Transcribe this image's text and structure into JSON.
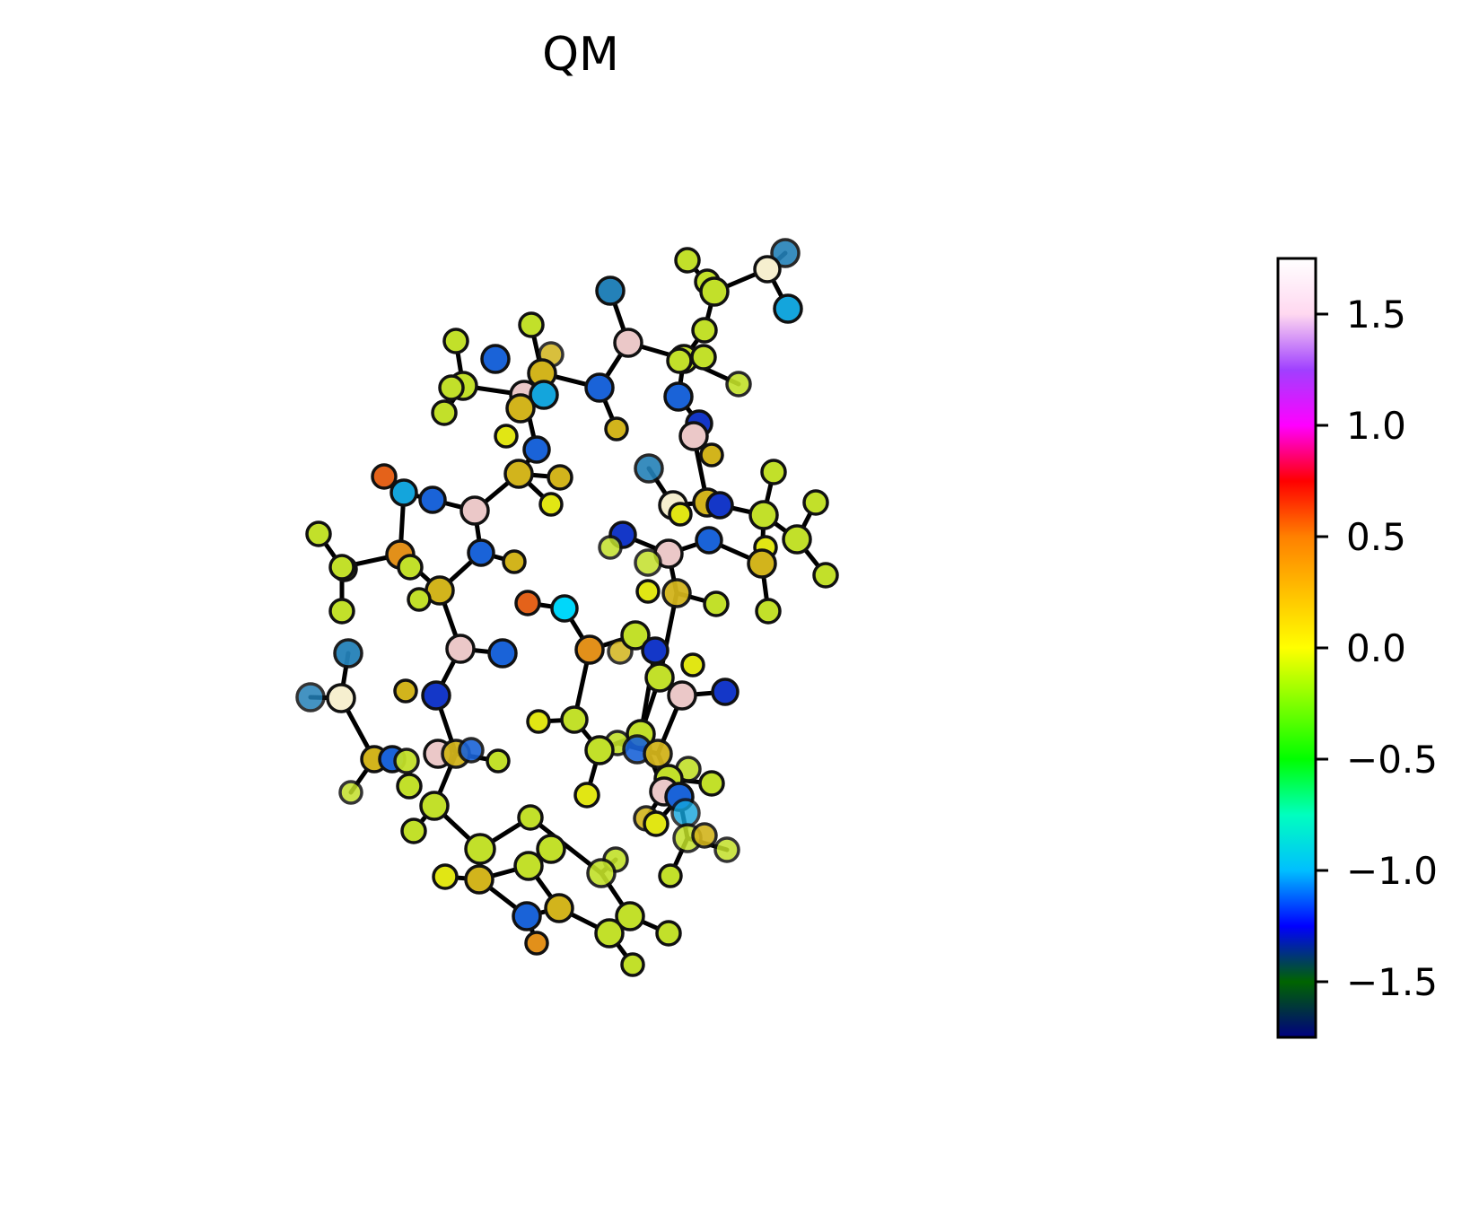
{
  "figure": {
    "title": "QM"
  },
  "colorbar": {
    "colormap": "gist_ncar",
    "range": [
      -1.75,
      1.75
    ],
    "stops": [
      "#000080",
      "#006400",
      "#0000FF",
      "#00BFFF",
      "#00FFBF",
      "#00FF00",
      "#80FF00",
      "#FFFF00",
      "#FFC000",
      "#FF8000",
      "#FF0000",
      "#FF00FF",
      "#A040FF",
      "#FFD8F0",
      "#FFFFFF"
    ],
    "ticks": [
      {
        "value": 1.5,
        "label": "1.5"
      },
      {
        "value": 1.0,
        "label": "1.0"
      },
      {
        "value": 0.5,
        "label": "0.5"
      },
      {
        "value": 0.0,
        "label": "0.0"
      },
      {
        "value": -0.5,
        "label": "−0.5"
      },
      {
        "value": -1.0,
        "label": "−1.0"
      },
      {
        "value": -1.5,
        "label": "−1.5"
      }
    ]
  },
  "atom_colors": {
    "lime": "#C2E02A",
    "mustard": "#D2B41C",
    "pink": "#EBC8C8",
    "cream": "#F6EFCF",
    "blue": "#1A63D8",
    "darkblue": "#1437C8",
    "teal": "#2481B8",
    "cyan": "#14A5DC",
    "yellow": "#E1E614",
    "orange": "#E2901A",
    "redorange": "#E4621A",
    "brightcyan": "#00D7FA"
  }
}
